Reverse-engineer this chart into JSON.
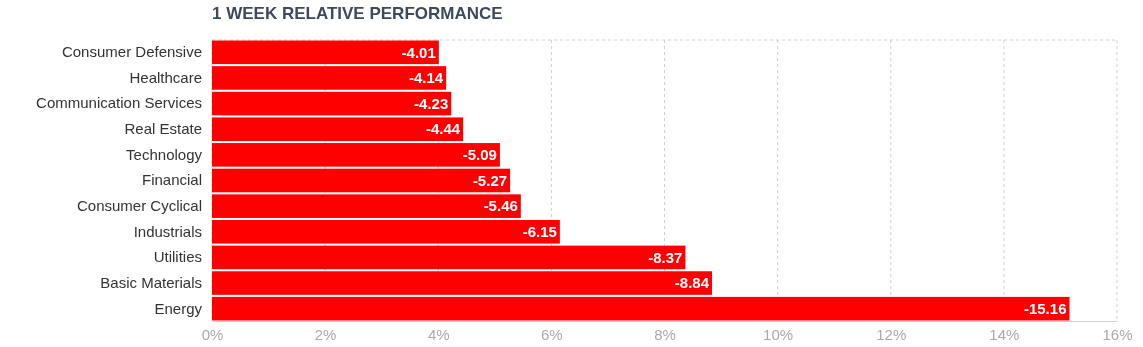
{
  "chart_data": {
    "type": "bar",
    "orientation": "horizontal",
    "title": "1 WEEK RELATIVE PERFORMANCE",
    "categories": [
      "Consumer Defensive",
      "Healthcare",
      "Communication Services",
      "Real Estate",
      "Technology",
      "Financial",
      "Consumer Cyclical",
      "Industrials",
      "Utilities",
      "Basic Materials",
      "Energy"
    ],
    "values": [
      -4.01,
      -4.14,
      -4.23,
      -4.44,
      -5.09,
      -5.27,
      -5.46,
      -6.15,
      -8.37,
      -8.84,
      -15.16
    ],
    "data_labels": true,
    "color": "#ff0000",
    "xlim": [
      0,
      -16
    ],
    "xticks": [
      {
        "value": 0,
        "label": "0%"
      },
      {
        "value": -2,
        "label": "2%"
      },
      {
        "value": -4,
        "label": "4%"
      },
      {
        "value": -6,
        "label": "6%"
      },
      {
        "value": -8,
        "label": "8%"
      },
      {
        "value": -10,
        "label": "10%"
      },
      {
        "value": -12,
        "label": "12%"
      },
      {
        "value": -14,
        "label": "14%"
      },
      {
        "value": -16,
        "label": "16%"
      }
    ],
    "grid": "x"
  }
}
